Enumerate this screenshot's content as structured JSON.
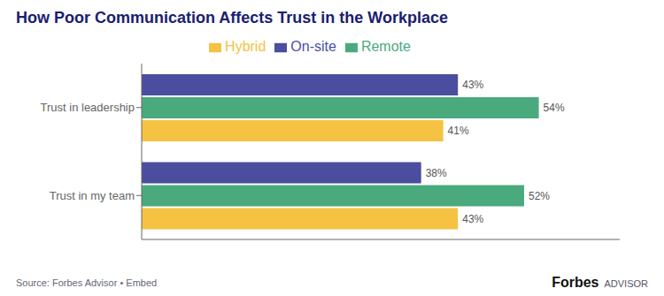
{
  "chart_data": {
    "type": "bar",
    "orientation": "horizontal",
    "title": "How Poor Communication Affects Trust in the Workplace",
    "categories": [
      "Trust in leadership",
      "Trust in my team"
    ],
    "series": [
      {
        "name": "On-site",
        "color": "#4b4e9e",
        "values": [
          43,
          38
        ],
        "value_labels": [
          "43%",
          "38%"
        ]
      },
      {
        "name": "Remote",
        "color": "#4aaa7e",
        "values": [
          54,
          52
        ],
        "value_labels": [
          "54%",
          "52%"
        ]
      },
      {
        "name": "Hybrid",
        "color": "#f5c242",
        "values": [
          41,
          43
        ],
        "value_labels": [
          "41%",
          "43%"
        ]
      }
    ],
    "xlim": [
      0,
      65
    ],
    "data_labels": true,
    "tick_labels": "y",
    "grid": false,
    "legend": "top",
    "annotations": [
      "Source: Forbes Advisor • Embed",
      "Forbes",
      "ADVISOR"
    ]
  }
}
